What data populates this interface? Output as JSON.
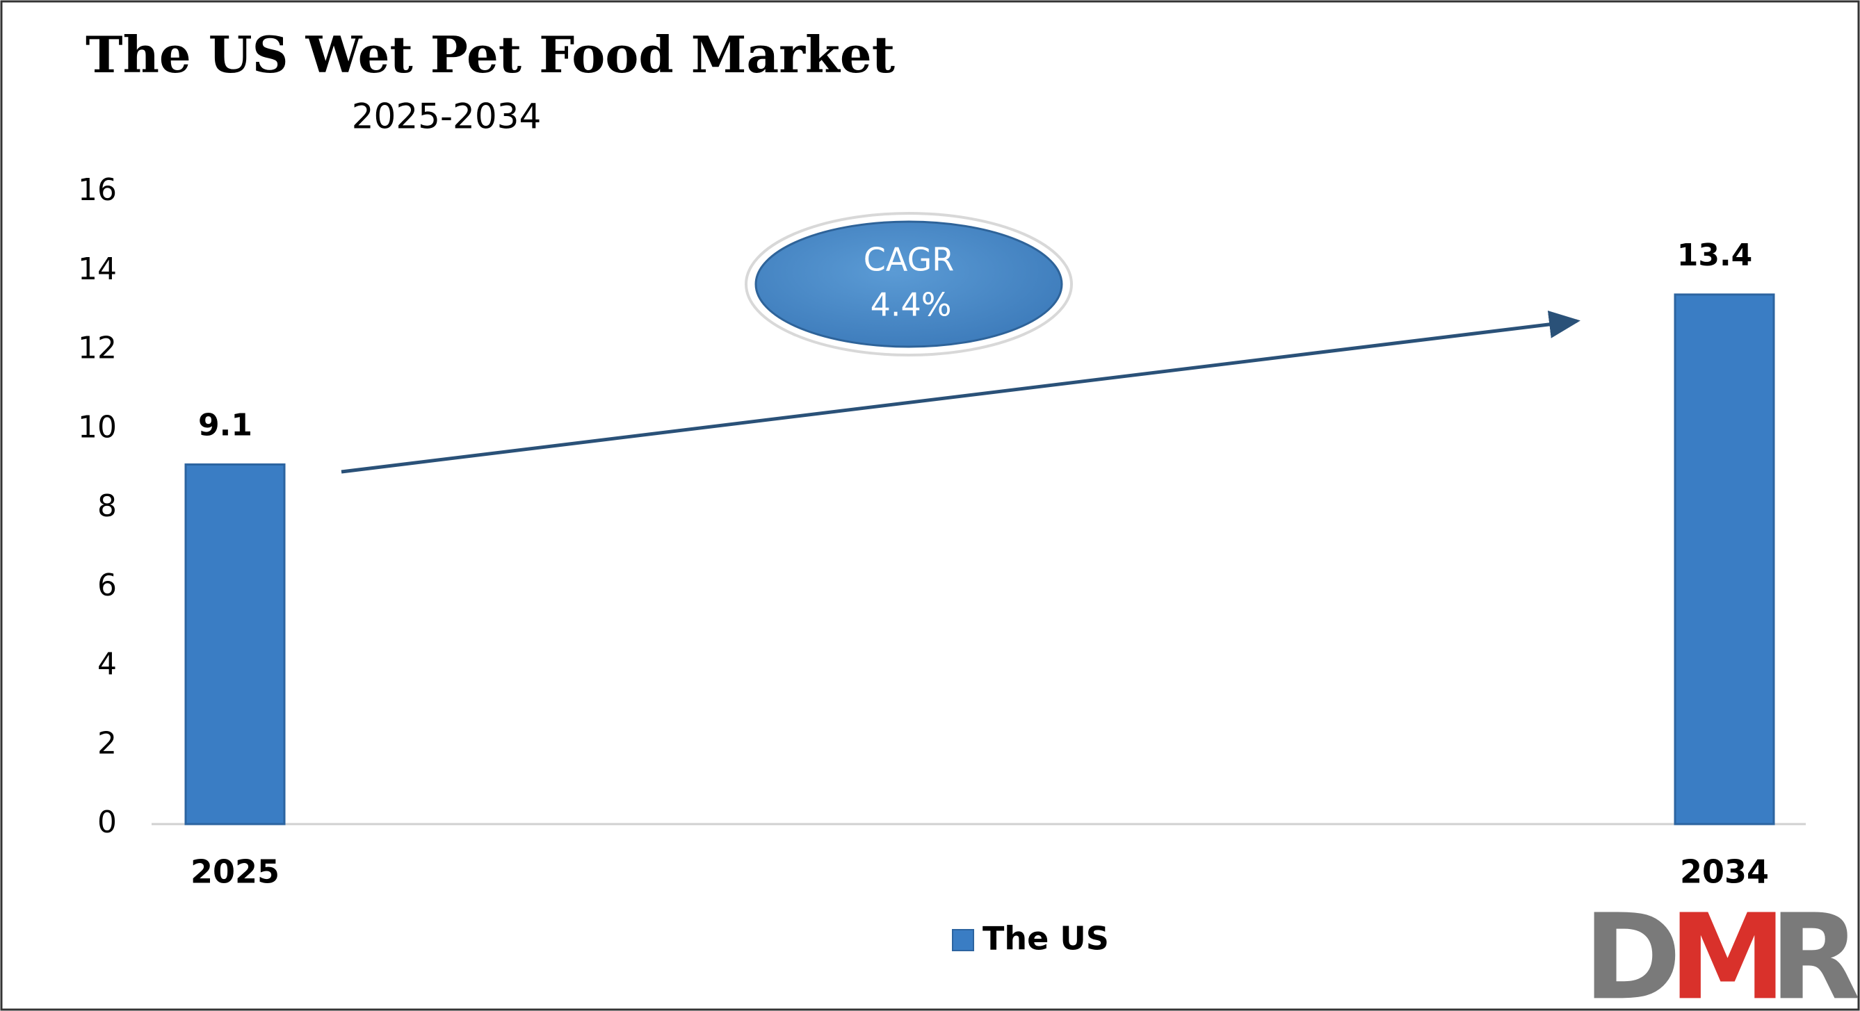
{
  "chart_data": {
    "type": "bar",
    "title": "The US Wet Pet Food Market",
    "subtitle": "2025-2034",
    "categories": [
      "2025",
      "2034"
    ],
    "series": [
      {
        "name": "The US",
        "color": "#3a7dc4",
        "values": [
          9.1,
          13.4
        ]
      }
    ],
    "ylim": [
      0,
      16
    ],
    "yticks": [
      0,
      2,
      4,
      6,
      8,
      10,
      12,
      14,
      16
    ],
    "annotations": [
      "CAGR",
      "4.4%"
    ],
    "logo": [
      "D",
      "M",
      "R"
    ]
  }
}
